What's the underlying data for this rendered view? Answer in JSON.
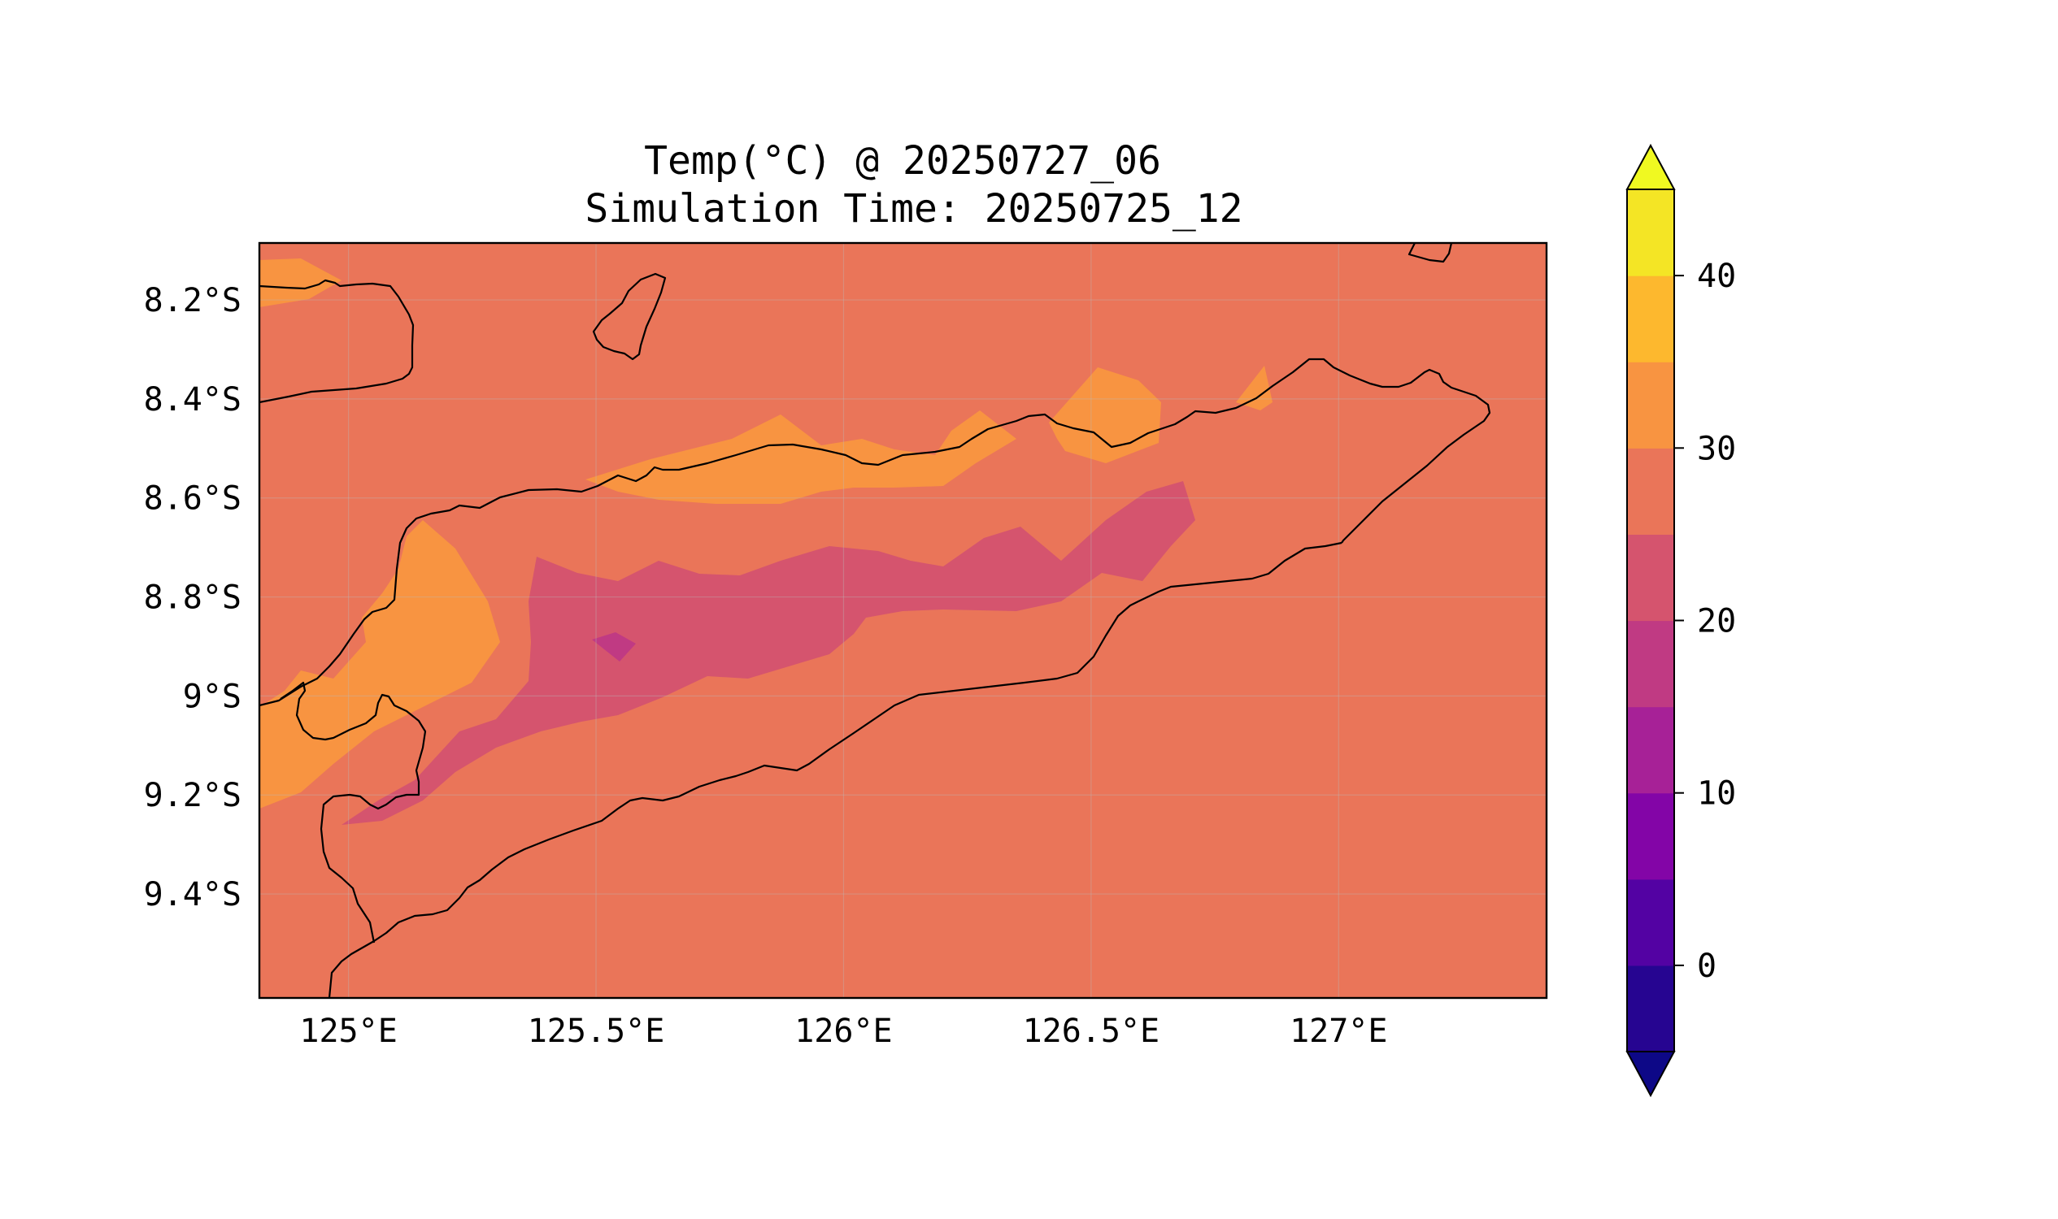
{
  "title_line1": "Temp(°C) @ 20250727_06",
  "title_line2": "Simulation Time: 20250725_12",
  "map": {
    "lon_range": [
      124.82,
      127.42
    ],
    "lat_range": [
      -9.61,
      -8.085
    ],
    "x_ticks": [
      {
        "value": 125.0,
        "label": "125°E"
      },
      {
        "value": 125.5,
        "label": "125.5°E"
      },
      {
        "value": 126.0,
        "label": "126°E"
      },
      {
        "value": 126.5,
        "label": "126.5°E"
      },
      {
        "value": 127.0,
        "label": "127°E"
      }
    ],
    "y_ticks": [
      {
        "value": -8.2,
        "label": "8.2°S"
      },
      {
        "value": -8.4,
        "label": "8.4°S"
      },
      {
        "value": -8.6,
        "label": "8.6°S"
      },
      {
        "value": -8.8,
        "label": "8.8°S"
      },
      {
        "value": -9.0,
        "label": "9°S"
      },
      {
        "value": -9.2,
        "label": "9.2°S"
      },
      {
        "value": -9.4,
        "label": "9.4°S"
      }
    ],
    "gridlines": true,
    "background_level_color": "#ea7559"
  },
  "colorbar": {
    "levels": [
      -5,
      0,
      5,
      10,
      15,
      20,
      25,
      30,
      35,
      40,
      45
    ],
    "colors": [
      "#260591",
      "#5302a3",
      "#8305a7",
      "#a72197",
      "#c03a83",
      "#d5546e",
      "#ea7559",
      "#f89441",
      "#fdb82e",
      "#f4e525"
    ],
    "under_color": "#0d0887",
    "over_color": "#f0f921",
    "extend": "both",
    "ticks": [
      {
        "value": 0,
        "label": "0"
      },
      {
        "value": 10,
        "label": "10"
      },
      {
        "value": 20,
        "label": "20"
      },
      {
        "value": 30,
        "label": "30"
      },
      {
        "value": 40,
        "label": "40"
      }
    ]
  }
}
